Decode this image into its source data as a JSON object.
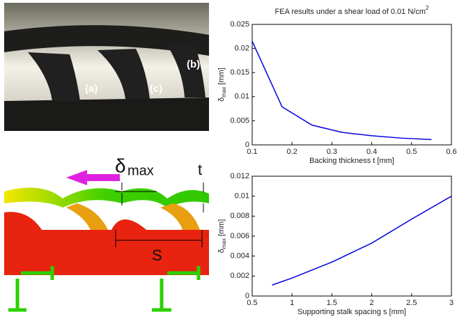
{
  "chart_data": [
    {
      "type": "line",
      "title": "FEA results under a shear load of 0.01 N/cm",
      "title_superscript": "2",
      "ylabel": {
        "symbol": "δ",
        "subscript": "max",
        "unit": "[mm]"
      },
      "xlabel": "Backing thickness t [mm]",
      "x": [
        0.1,
        0.175,
        0.25,
        0.325,
        0.4,
        0.475,
        0.55
      ],
      "series": [
        {
          "color": "#0000e0",
          "values": [
            0.0215,
            0.0079,
            0.0041,
            0.0026,
            0.0019,
            0.0014,
            0.0011
          ]
        }
      ],
      "xlim": [
        0.1,
        0.6
      ],
      "xticks": [
        0.1,
        0.2,
        0.3,
        0.4,
        0.5,
        0.6
      ],
      "ylim": [
        0,
        0.025
      ],
      "yticks": [
        0,
        0.005,
        0.01,
        0.015,
        0.02,
        0.025
      ]
    },
    {
      "type": "line",
      "ylabel": {
        "symbol": "δ",
        "subscript": "max",
        "unit": "[mm]"
      },
      "xlabel": "Supporting stalk spacing s [mm]",
      "x": [
        0.75,
        1,
        1.5,
        2,
        2.5,
        3
      ],
      "series": [
        {
          "color": "#0000e0",
          "values": [
            0.0011,
            0.0018,
            0.0034,
            0.0053,
            0.0077,
            0.01
          ]
        }
      ],
      "xlim": [
        0.5,
        3
      ],
      "xticks": [
        0.5,
        1,
        1.5,
        2,
        2.5,
        3
      ],
      "ylim": [
        0,
        0.012
      ],
      "yticks": [
        0,
        0.002,
        0.004,
        0.006,
        0.008,
        0.01,
        0.012
      ]
    }
  ],
  "figure": {
    "photo_labels": [
      "(a)",
      "(b)",
      "(c)"
    ],
    "delta": "δ",
    "delta_subscript": "max",
    "thickness": "t",
    "spacing": "S"
  }
}
